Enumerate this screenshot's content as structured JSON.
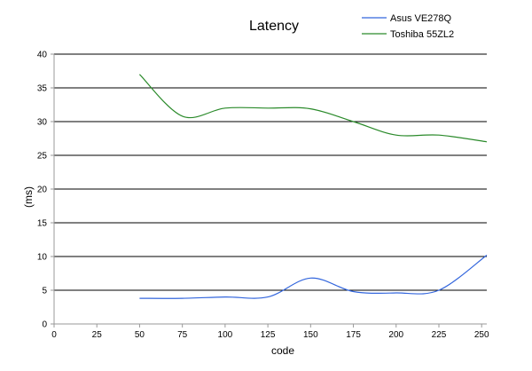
{
  "chart_data": {
    "type": "line",
    "title": "Latency",
    "xlabel": "code",
    "ylabel": "(ms)",
    "xlim": [
      0,
      253
    ],
    "ylim": [
      0,
      40
    ],
    "x_ticks": [
      0,
      25,
      50,
      75,
      100,
      125,
      150,
      175,
      200,
      225,
      250
    ],
    "y_ticks": [
      0,
      5,
      10,
      15,
      20,
      25,
      30,
      35,
      40
    ],
    "grid": "horizontal",
    "legend_position": "top-right",
    "series": [
      {
        "name": "Asus VE278Q",
        "color": "#3366dd",
        "x": [
          50,
          75,
          100,
          125,
          150,
          175,
          200,
          225,
          253
        ],
        "y": [
          3.8,
          3.8,
          4.0,
          4.0,
          6.8,
          4.8,
          4.6,
          5.0,
          10.2
        ]
      },
      {
        "name": "Toshiba 55ZL2",
        "color": "#2a8a2a",
        "x": [
          50,
          75,
          100,
          125,
          150,
          175,
          200,
          225,
          253
        ],
        "y": [
          37.0,
          30.8,
          32.0,
          32.0,
          31.9,
          30.0,
          28.0,
          28.0,
          27.0
        ]
      }
    ]
  }
}
